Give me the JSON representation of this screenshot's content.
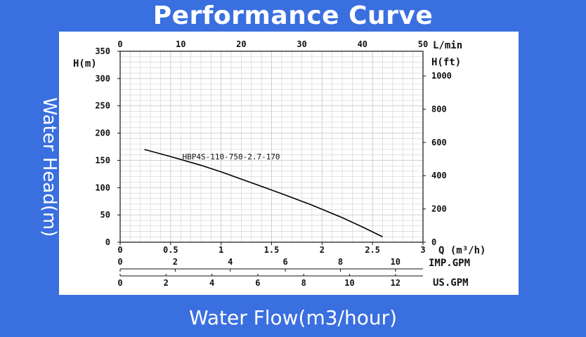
{
  "colors": {
    "background": "#3a6fe0",
    "panel": "#ffffff",
    "grid": "#cfcfcf",
    "curve": "#000000",
    "text_on_bg": "#ffffff"
  },
  "chart_data": {
    "type": "line",
    "title": "Performance Curve",
    "xlabel": "Water Flow(m3/hour)",
    "ylabel": "Water Head(m)",
    "grid": true,
    "x_axis_bottom": {
      "name": "Q (m³/h)",
      "range": [
        0,
        3
      ],
      "ticks": [
        "0",
        "0.5",
        "1",
        "1.5",
        "2",
        "2.5",
        "3"
      ]
    },
    "x_axis_top": {
      "name": "L/min",
      "range": [
        0,
        50
      ],
      "ticks": [
        "0",
        "10",
        "20",
        "30",
        "40",
        "50"
      ]
    },
    "x_axis_imp": {
      "name": "IMP.GPM",
      "range": [
        0,
        11
      ],
      "ticks": [
        "0",
        "2",
        "4",
        "6",
        "8",
        "10"
      ]
    },
    "x_axis_us": {
      "name": "US.GPM",
      "range": [
        0,
        13.2
      ],
      "ticks": [
        "0",
        "2",
        "4",
        "6",
        "8",
        "10",
        "12"
      ]
    },
    "y_axis_left": {
      "name": "H(m)",
      "range": [
        0,
        350
      ],
      "ticks": [
        "0",
        "50",
        "100",
        "150",
        "200",
        "250",
        "300",
        "350"
      ]
    },
    "y_axis_right": {
      "name": "H(ft)",
      "range": [
        0,
        1148
      ],
      "ticks": [
        "0",
        "200",
        "400",
        "600",
        "800",
        "1000"
      ]
    },
    "series": [
      {
        "name": "HBP4S-110-750-2.7-170",
        "x": [
          0.24,
          0.5,
          0.8,
          1.0,
          1.3,
          1.6,
          1.9,
          2.2,
          2.4,
          2.6
        ],
        "y": [
          170,
          157,
          141,
          129,
          109,
          89,
          68,
          45,
          28,
          10
        ]
      }
    ]
  }
}
